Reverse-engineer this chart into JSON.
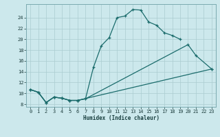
{
  "xlabel": "Humidex (Indice chaleur)",
  "bg_color": "#cce8ec",
  "grid_color": "#aaccd0",
  "line_color": "#1a6b6b",
  "xlim": [
    -0.5,
    23.5
  ],
  "ylim": [
    7.5,
    26.5
  ],
  "xticks": [
    0,
    1,
    2,
    3,
    4,
    5,
    6,
    7,
    8,
    9,
    10,
    11,
    12,
    13,
    14,
    15,
    16,
    17,
    18,
    19,
    20,
    21,
    22,
    23
  ],
  "yticks": [
    8,
    10,
    12,
    14,
    16,
    18,
    20,
    22,
    24
  ],
  "line1_x": [
    0,
    1,
    2,
    3,
    4,
    5,
    6,
    7,
    8,
    9,
    10,
    11,
    12,
    13,
    14,
    15,
    16,
    17,
    18,
    19
  ],
  "line1_y": [
    10.7,
    10.2,
    8.3,
    9.3,
    9.1,
    8.7,
    8.7,
    9.0,
    14.8,
    18.8,
    20.3,
    24.0,
    24.3,
    25.5,
    25.4,
    23.2,
    22.6,
    21.2,
    20.7,
    20.0
  ],
  "line2_x": [
    0,
    1,
    2,
    3,
    4,
    5,
    6,
    7,
    20,
    21,
    23
  ],
  "line2_y": [
    10.7,
    10.2,
    8.3,
    9.3,
    9.1,
    8.7,
    8.7,
    9.0,
    19.0,
    17.0,
    14.5
  ],
  "line3_x": [
    0,
    1,
    2,
    3,
    4,
    5,
    6,
    23
  ],
  "line3_y": [
    10.7,
    10.2,
    8.3,
    9.3,
    9.1,
    8.7,
    8.7,
    14.5
  ]
}
